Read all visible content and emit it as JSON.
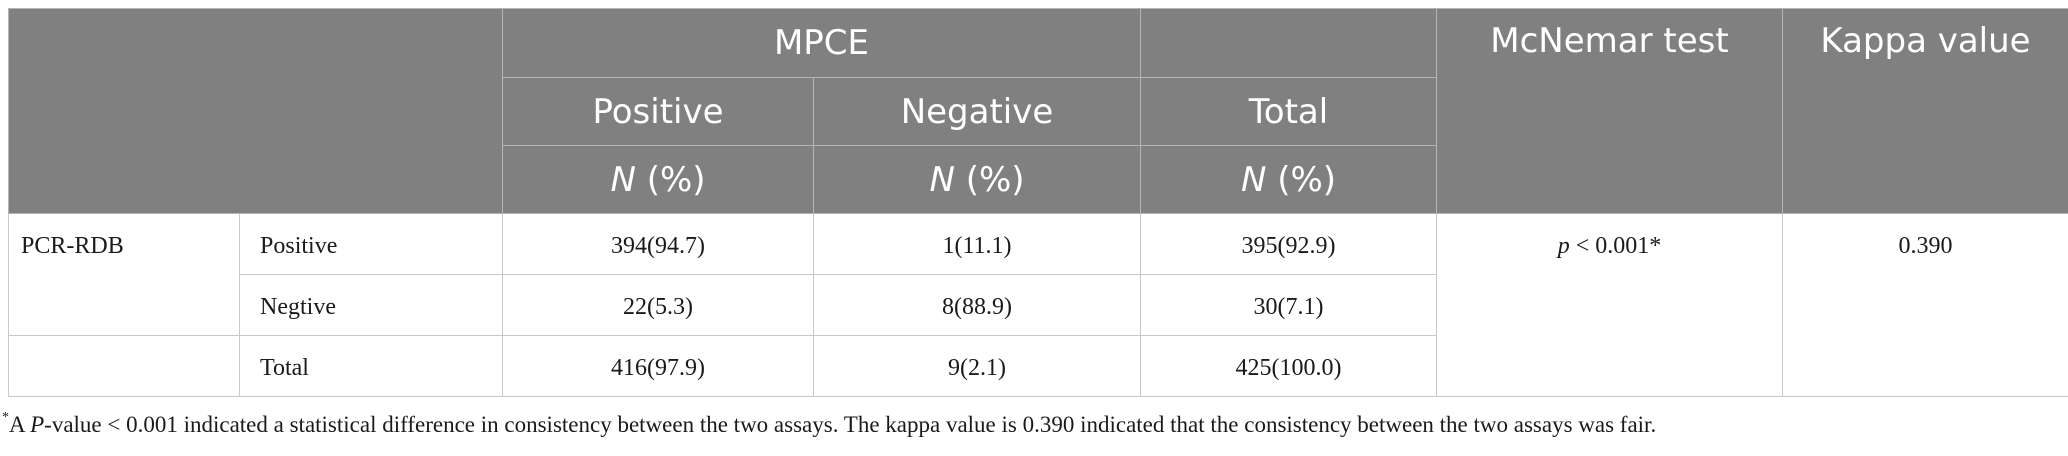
{
  "header": {
    "group_label": "MPCE",
    "mcnemar_label": "McNemar test",
    "kappa_label": "Kappa value",
    "col_positive": "Positive",
    "col_negative": "Negative",
    "col_total": "Total",
    "unit_n": "N",
    "unit_pct": "(%)"
  },
  "rows": [
    {
      "group": "PCR-RDB",
      "label": "Positive",
      "positive": "394(94.7)",
      "negative": "1(11.1)",
      "total": "395(92.9)"
    },
    {
      "group": "",
      "label": "Negtive",
      "positive": "22(5.3)",
      "negative": "8(88.9)",
      "total": "30(7.1)"
    },
    {
      "group": "",
      "label": "Total",
      "positive": "416(97.9)",
      "negative": "9(2.1)",
      "total": "425(100.0)"
    }
  ],
  "mcnemar": {
    "p_symbol": "p",
    "value": " < 0.001*"
  },
  "kappa": "0.390",
  "footnote": {
    "marker": "*",
    "prefix": "A ",
    "p_symbol": "P",
    "text": "-value < 0.001 indicated a statistical difference in consistency between the two assays. The kappa value is 0.390 indicated that the consistency between the two assays was fair."
  }
}
